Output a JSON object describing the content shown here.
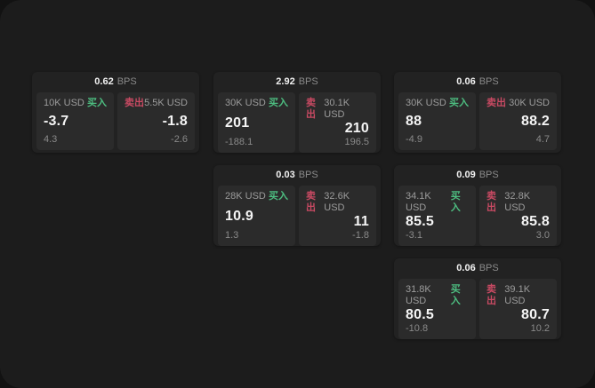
{
  "page": {
    "outer_background": "#121212",
    "surface_background": "#1c1c1c",
    "card_background": "#222222",
    "panel_background": "#2b2b2b"
  },
  "colors": {
    "buy": "#4dbd80",
    "sell": "#c94a63",
    "value_text": "#f5f5f5",
    "muted_text": "#9c9c9c"
  },
  "labels": {
    "bps": "BPS",
    "buy": "买入",
    "sell": "卖出"
  },
  "layout_hints": {
    "column_lefts": [
      36,
      240,
      443
    ],
    "row_tops": [
      81,
      186,
      291
    ]
  },
  "cards": [
    {
      "row": 1,
      "col": 1,
      "bps": "0.62",
      "buy": {
        "notional": "10K USD",
        "price": "-3.7",
        "delta": "4.3"
      },
      "sell": {
        "notional": "5.5K USD",
        "price": "-1.8",
        "delta": "-2.6"
      }
    },
    {
      "row": 1,
      "col": 2,
      "bps": "2.92",
      "buy": {
        "notional": "30K USD",
        "price": "201",
        "delta": "-188.1"
      },
      "sell": {
        "notional": "30.1K USD",
        "price": "210",
        "delta": "196.5"
      }
    },
    {
      "row": 1,
      "col": 3,
      "bps": "0.06",
      "buy": {
        "notional": "30K USD",
        "price": "88",
        "delta": "-4.9"
      },
      "sell": {
        "notional": "30K USD",
        "price": "88.2",
        "delta": "4.7"
      }
    },
    {
      "row": 2,
      "col": 2,
      "bps": "0.03",
      "buy": {
        "notional": "28K USD",
        "price": "10.9",
        "delta": "1.3"
      },
      "sell": {
        "notional": "32.6K USD",
        "price": "11",
        "delta": "-1.8"
      }
    },
    {
      "row": 2,
      "col": 3,
      "bps": "0.09",
      "buy": {
        "notional": "34.1K USD",
        "price": "85.5",
        "delta": "-3.1"
      },
      "sell": {
        "notional": "32.8K USD",
        "price": "85.8",
        "delta": "3.0"
      }
    },
    {
      "row": 3,
      "col": 3,
      "bps": "0.06",
      "buy": {
        "notional": "31.8K USD",
        "price": "80.5",
        "delta": "-10.8"
      },
      "sell": {
        "notional": "39.1K USD",
        "price": "80.7",
        "delta": "10.2"
      }
    }
  ]
}
